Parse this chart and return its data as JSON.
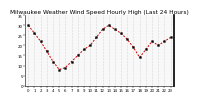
{
  "title": "Milwaukee Weather Wind Speed Hourly High (Last 24 Hours)",
  "y_values": [
    30,
    26,
    22,
    17,
    12,
    8,
    9,
    12,
    15,
    18,
    20,
    24,
    28,
    30,
    28,
    26,
    23,
    19,
    14,
    18,
    22,
    20,
    22,
    24
  ],
  "x_labels": [
    "0",
    "1",
    "2",
    "3",
    "4",
    "5",
    "6",
    "7",
    "8",
    "9",
    "10",
    "11",
    "12",
    "13",
    "14",
    "15",
    "16",
    "17",
    "18",
    "19",
    "20",
    "21",
    "22",
    "23"
  ],
  "line_color": "#cc0000",
  "marker_color": "#000000",
  "bg_color": "#ffffff",
  "plot_bg_color": "#f8f8f8",
  "grid_color": "#bbbbbb",
  "title_color": "#000000",
  "ylim_min": 0,
  "ylim_max": 35,
  "yticks": [
    0,
    5,
    10,
    15,
    20,
    25,
    30,
    35
  ],
  "ytick_labels": [
    "0",
    "5",
    "10",
    "15",
    "20",
    "25",
    "30",
    "35"
  ],
  "title_fontsize": 4.2,
  "tick_fontsize": 2.8,
  "right_border_color": "#000000"
}
